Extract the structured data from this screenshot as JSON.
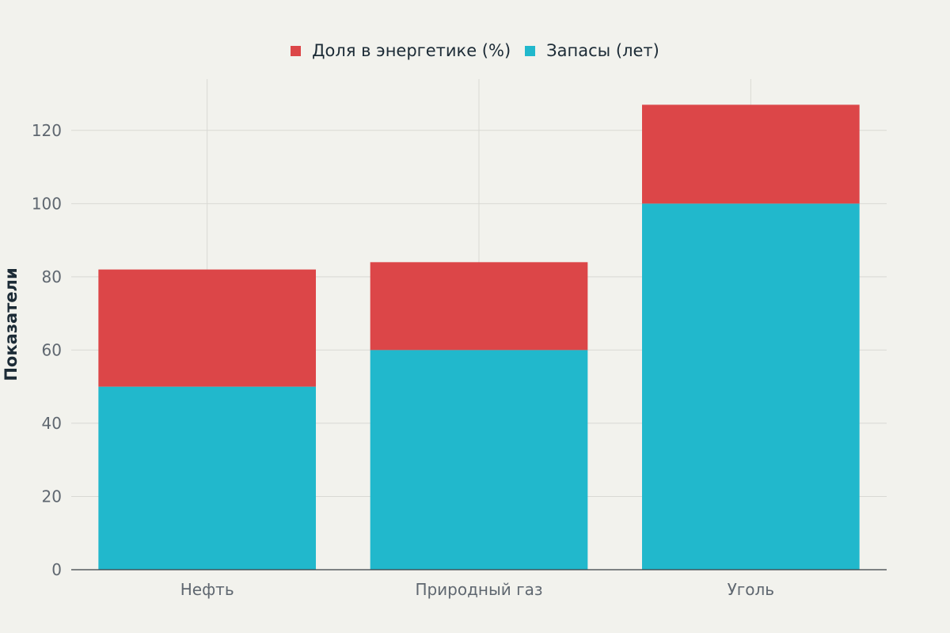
{
  "chart_data": {
    "type": "bar",
    "stacked": true,
    "categories": [
      "Нефть",
      "Природный газ",
      "Уголь"
    ],
    "series": [
      {
        "name": "Запасы (лет)",
        "values": [
          50,
          60,
          100
        ],
        "color": "#21b8cc"
      },
      {
        "name": "Доля в энергетике (%)",
        "values": [
          32,
          24,
          27
        ],
        "color": "#dc4648"
      }
    ],
    "legend_order": [
      "Доля в энергетике (%)",
      "Запасы (лет)"
    ],
    "legend_position": "top-center",
    "ylabel": "Показатели",
    "xlabel": "",
    "ylim": [
      0,
      134
    ],
    "yticks": [
      0,
      20,
      40,
      60,
      80,
      100,
      120
    ],
    "grid": true
  }
}
